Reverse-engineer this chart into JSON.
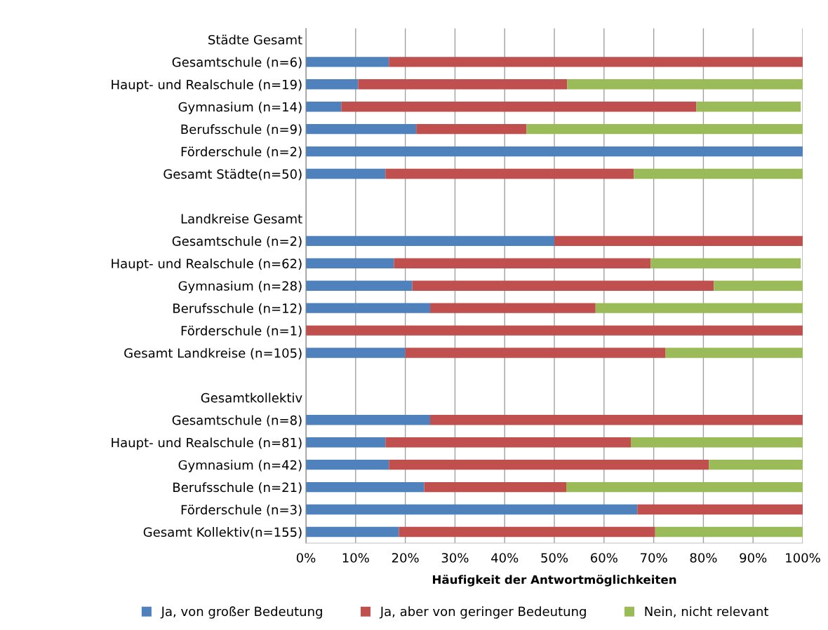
{
  "chart_data": {
    "type": "bar",
    "orientation": "horizontal",
    "stacked": true,
    "categories": [
      "Städte Gesamt",
      "Gesamtschule (n=6)",
      "Haupt- und Realschule (n=19)",
      "Gymnasium (n=14)",
      "Berufsschule (n=9)",
      "Förderschule (n=2)",
      "Gesamt Städte(n=50)",
      null,
      "Landkreise Gesamt",
      "Gesamtschule (n=2)",
      "Haupt- und Realschule (n=62)",
      "Gymnasium (n=28)",
      "Berufsschule (n=12)",
      "Förderschule (n=1)",
      "Gesamt Landkreise (n=105)",
      null,
      "Gesamtkollektiv",
      "Gesamtschule (n=8)",
      "Haupt- und Realschule (n=81)",
      "Gymnasium (n=42)",
      "Berufsschule (n=21)",
      "Förderschule (n=3)",
      "Gesamt Kollektiv(n=155)"
    ],
    "series": [
      {
        "name": "Ja, von großer Bedeutung",
        "color": "#4f81bd",
        "values": [
          null,
          16.7,
          10.5,
          7.1,
          22.2,
          100,
          16,
          null,
          null,
          50,
          17.7,
          21.4,
          25,
          0,
          20,
          null,
          null,
          25,
          16,
          16.7,
          23.8,
          66.7,
          18.7
        ]
      },
      {
        "name": "Ja, aber von geringer Bedeutung",
        "color": "#c0504d",
        "values": [
          null,
          83.3,
          42.1,
          71.5,
          22.2,
          0,
          50,
          null,
          null,
          50,
          51.7,
          60.7,
          33.3,
          100,
          52.4,
          null,
          null,
          75,
          49.4,
          64.4,
          28.6,
          33.3,
          51.6
        ]
      },
      {
        "name": "Nein, nicht relevant",
        "color": "#9bbb59",
        "values": [
          null,
          0,
          47.4,
          21.0,
          55.6,
          0,
          34,
          null,
          null,
          0,
          30.2,
          17.9,
          41.7,
          0,
          27.6,
          null,
          null,
          0,
          34.6,
          18.9,
          47.6,
          0,
          29.7
        ]
      }
    ],
    "xlabel": "Häufigkeit der Antwortmöglichkeiten",
    "xlim": [
      0,
      100
    ],
    "xticks": [
      {
        "value": 0,
        "label": "0%"
      },
      {
        "value": 10,
        "label": "10%"
      },
      {
        "value": 20,
        "label": "20%"
      },
      {
        "value": 30,
        "label": "30%"
      },
      {
        "value": 40,
        "label": "40%"
      },
      {
        "value": 50,
        "label": "50%"
      },
      {
        "value": 60,
        "label": "60%"
      },
      {
        "value": 70,
        "label": "70%"
      },
      {
        "value": 80,
        "label": "80%"
      },
      {
        "value": 90,
        "label": "90%"
      },
      {
        "value": 100,
        "label": "100%"
      }
    ],
    "grid": "x",
    "legend": "bottom"
  }
}
